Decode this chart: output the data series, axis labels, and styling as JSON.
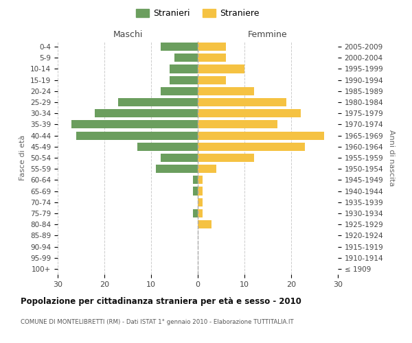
{
  "age_groups": [
    "100+",
    "95-99",
    "90-94",
    "85-89",
    "80-84",
    "75-79",
    "70-74",
    "65-69",
    "60-64",
    "55-59",
    "50-54",
    "45-49",
    "40-44",
    "35-39",
    "30-34",
    "25-29",
    "20-24",
    "15-19",
    "10-14",
    "5-9",
    "0-4"
  ],
  "birth_years": [
    "≤ 1909",
    "1910-1914",
    "1915-1919",
    "1920-1924",
    "1925-1929",
    "1930-1934",
    "1935-1939",
    "1940-1944",
    "1945-1949",
    "1950-1954",
    "1955-1959",
    "1960-1964",
    "1965-1969",
    "1970-1974",
    "1975-1979",
    "1980-1984",
    "1985-1989",
    "1990-1994",
    "1995-1999",
    "2000-2004",
    "2005-2009"
  ],
  "males": [
    0,
    0,
    0,
    0,
    0,
    1,
    0,
    1,
    1,
    9,
    8,
    13,
    26,
    27,
    22,
    17,
    8,
    6,
    6,
    5,
    8
  ],
  "females": [
    0,
    0,
    0,
    0,
    3,
    1,
    1,
    1,
    1,
    4,
    12,
    23,
    27,
    17,
    22,
    19,
    12,
    6,
    10,
    6,
    6
  ],
  "male_color": "#6b9e5e",
  "female_color": "#f5c242",
  "background_color": "#ffffff",
  "grid_color": "#cccccc",
  "title": "Popolazione per cittadinanza straniera per età e sesso - 2010",
  "subtitle": "COMUNE DI MONTELIBRETTI (RM) - Dati ISTAT 1° gennaio 2010 - Elaborazione TUTTITALIA.IT",
  "header_left": "Maschi",
  "header_right": "Femmine",
  "ylabel_left": "Fasce di età",
  "ylabel_right": "Anni di nascita",
  "legend_male": "Stranieri",
  "legend_female": "Straniere",
  "xlim": 30,
  "bar_height": 0.75
}
